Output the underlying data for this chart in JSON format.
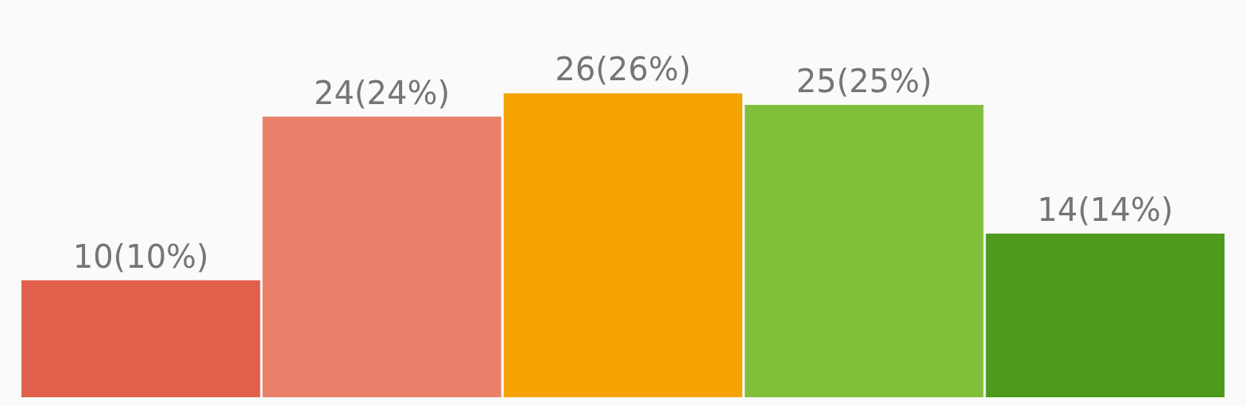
{
  "chart_data": {
    "type": "bar",
    "categories": [
      null,
      null,
      null,
      null,
      null
    ],
    "values": [
      10,
      24,
      26,
      25,
      14
    ],
    "colors": [
      "#e0604c",
      "#e8806a",
      "#f4a300",
      "#80bf3a",
      "#4e9a1e"
    ],
    "value_labels": [
      "10(10%)",
      "24(24%)",
      "26(26%)",
      "25(25%)",
      "14(14%)"
    ]
  }
}
